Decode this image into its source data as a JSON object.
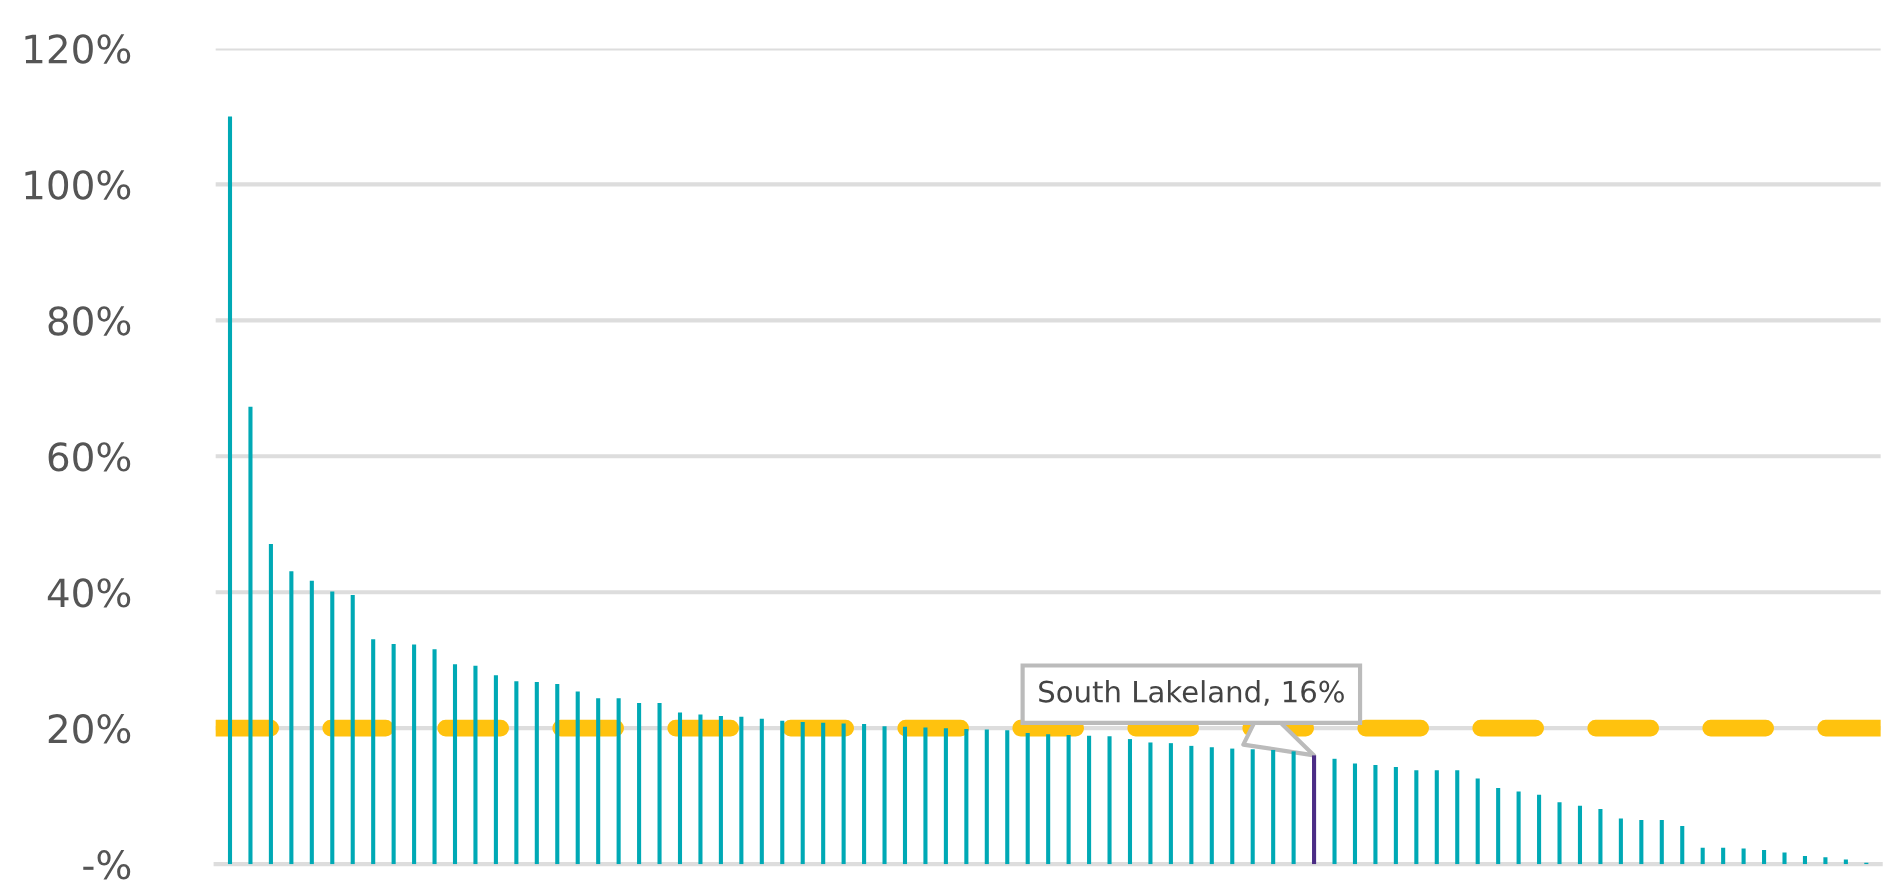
{
  "chart_data": {
    "type": "bar",
    "categories": [
      null,
      null,
      null,
      null,
      null,
      null,
      null,
      null,
      null,
      null,
      null,
      null,
      null,
      null,
      null,
      null,
      null,
      null,
      null,
      null,
      null,
      null,
      null,
      null,
      null,
      null,
      null,
      null,
      null,
      null,
      null,
      null,
      null,
      null,
      null,
      null,
      null,
      null,
      null,
      null,
      null,
      null,
      null,
      null,
      null,
      null,
      null,
      null,
      null,
      null,
      null,
      null,
      null,
      null,
      null,
      null,
      null,
      null,
      null,
      null,
      null,
      null,
      null,
      null,
      null,
      null,
      null,
      null,
      null,
      null,
      null,
      null,
      null,
      null,
      null,
      null,
      null,
      null,
      null,
      null,
      null
    ],
    "values": [
      110,
      67.3,
      47.1,
      43.1,
      41.7,
      40.1,
      39.6,
      33.1,
      32.4,
      32.3,
      31.6,
      29.4,
      29.2,
      27.8,
      26.9,
      26.8,
      26.5,
      25.4,
      24.4,
      24.4,
      23.7,
      23.7,
      22.3,
      22.0,
      21.8,
      21.7,
      21.4,
      21.1,
      20.9,
      20.8,
      20.7,
      20.6,
      20.3,
      20.2,
      20.1,
      20.0,
      19.9,
      19.8,
      19.7,
      19.3,
      19.1,
      19.0,
      18.9,
      18.8,
      18.4,
      17.9,
      17.8,
      17.4,
      17.2,
      17.0,
      16.9,
      16.8,
      16.6,
      16,
      15.5,
      14.8,
      14.6,
      14.3,
      13.8,
      13.8,
      13.8,
      12.6,
      11.2,
      10.7,
      10.2,
      9.1,
      8.6,
      8.1,
      6.7,
      6.5,
      6.5,
      5.6,
      2.4,
      2.4,
      2.3,
      2.1,
      1.7,
      1.2,
      1.0,
      0.7,
      0.2
    ],
    "colors": [
      "#00a9b5",
      "#00a9b5",
      "#00a9b5",
      "#00a9b5",
      "#00a9b5",
      "#00a9b5",
      "#00a9b5",
      "#00a9b5",
      "#00a9b5",
      "#00a9b5",
      "#00a9b5",
      "#00a9b5",
      "#00a9b5",
      "#00a9b5",
      "#00a9b5",
      "#00a9b5",
      "#00a9b5",
      "#00a9b5",
      "#00a9b5",
      "#00a9b5",
      "#00a9b5",
      "#00a9b5",
      "#00a9b5",
      "#00a9b5",
      "#00a9b5",
      "#00a9b5",
      "#00a9b5",
      "#00a9b5",
      "#00a9b5",
      "#00a9b5",
      "#00a9b5",
      "#00a9b5",
      "#00a9b5",
      "#00a9b5",
      "#00a9b5",
      "#00a9b5",
      "#00a9b5",
      "#00a9b5",
      "#00a9b5",
      "#00a9b5",
      "#00a9b5",
      "#00a9b5",
      "#00a9b5",
      "#00a9b5",
      "#00a9b5",
      "#00a9b5",
      "#00a9b5",
      "#00a9b5",
      "#00a9b5",
      "#00a9b5",
      "#00a9b5",
      "#00a9b5",
      "#00a9b5",
      "#4b2c85",
      "#00a9b5",
      "#00a9b5",
      "#00a9b5",
      "#00a9b5",
      "#00a9b5",
      "#00a9b5",
      "#00a9b5",
      "#00a9b5",
      "#00a9b5",
      "#00a9b5",
      "#00a9b5",
      "#00a9b5",
      "#00a9b5",
      "#00a9b5",
      "#00a9b5",
      "#00a9b5",
      "#00a9b5",
      "#00a9b5",
      "#00a9b5",
      "#00a9b5",
      "#00a9b5",
      "#00a9b5",
      "#00a9b5",
      "#00a9b5",
      "#00a9b5",
      "#00a9b5",
      "#00a9b5"
    ],
    "ylim": [
      0,
      120
    ],
    "yticks": [
      {
        "value": 0,
        "label": "-%"
      },
      {
        "value": 20,
        "label": "20%"
      },
      {
        "value": 40,
        "label": "40%"
      },
      {
        "value": 60,
        "label": "60%"
      },
      {
        "value": 80,
        "label": "80%"
      },
      {
        "value": 100,
        "label": "100%"
      },
      {
        "value": 120,
        "label": "120%"
      }
    ],
    "grid": "y",
    "ref_lines": [
      {
        "axis": "y",
        "value": 20,
        "color": "#ffc20e",
        "line_style": "dashed"
      }
    ],
    "annotations": [
      {
        "text": "South Lakeland, 16%",
        "y": 16
      }
    ]
  }
}
